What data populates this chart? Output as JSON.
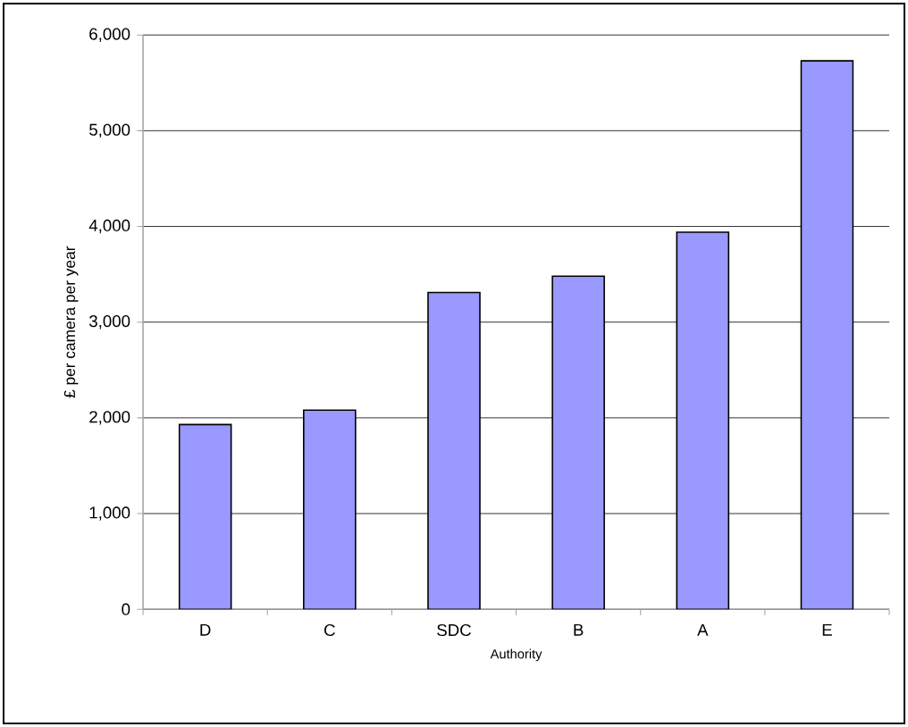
{
  "chart_data": {
    "type": "bar",
    "xlabel": "Authority",
    "ylabel": "£ per camera per year",
    "categories": [
      "D",
      "C",
      "SDC",
      "B",
      "A",
      "E"
    ],
    "values": [
      1930,
      2080,
      3310,
      3480,
      3940,
      5730
    ],
    "color": "#9999ff",
    "ylim": [
      0,
      6000
    ],
    "yticks": [
      {
        "value": 0,
        "label": "0"
      },
      {
        "value": 1000,
        "label": "1,000"
      },
      {
        "value": 2000,
        "label": "2,000"
      },
      {
        "value": 3000,
        "label": "3,000"
      },
      {
        "value": 4000,
        "label": "4,000"
      },
      {
        "value": 5000,
        "label": "5,000"
      },
      {
        "value": 6000,
        "label": "6,000"
      }
    ],
    "grid": "y"
  }
}
